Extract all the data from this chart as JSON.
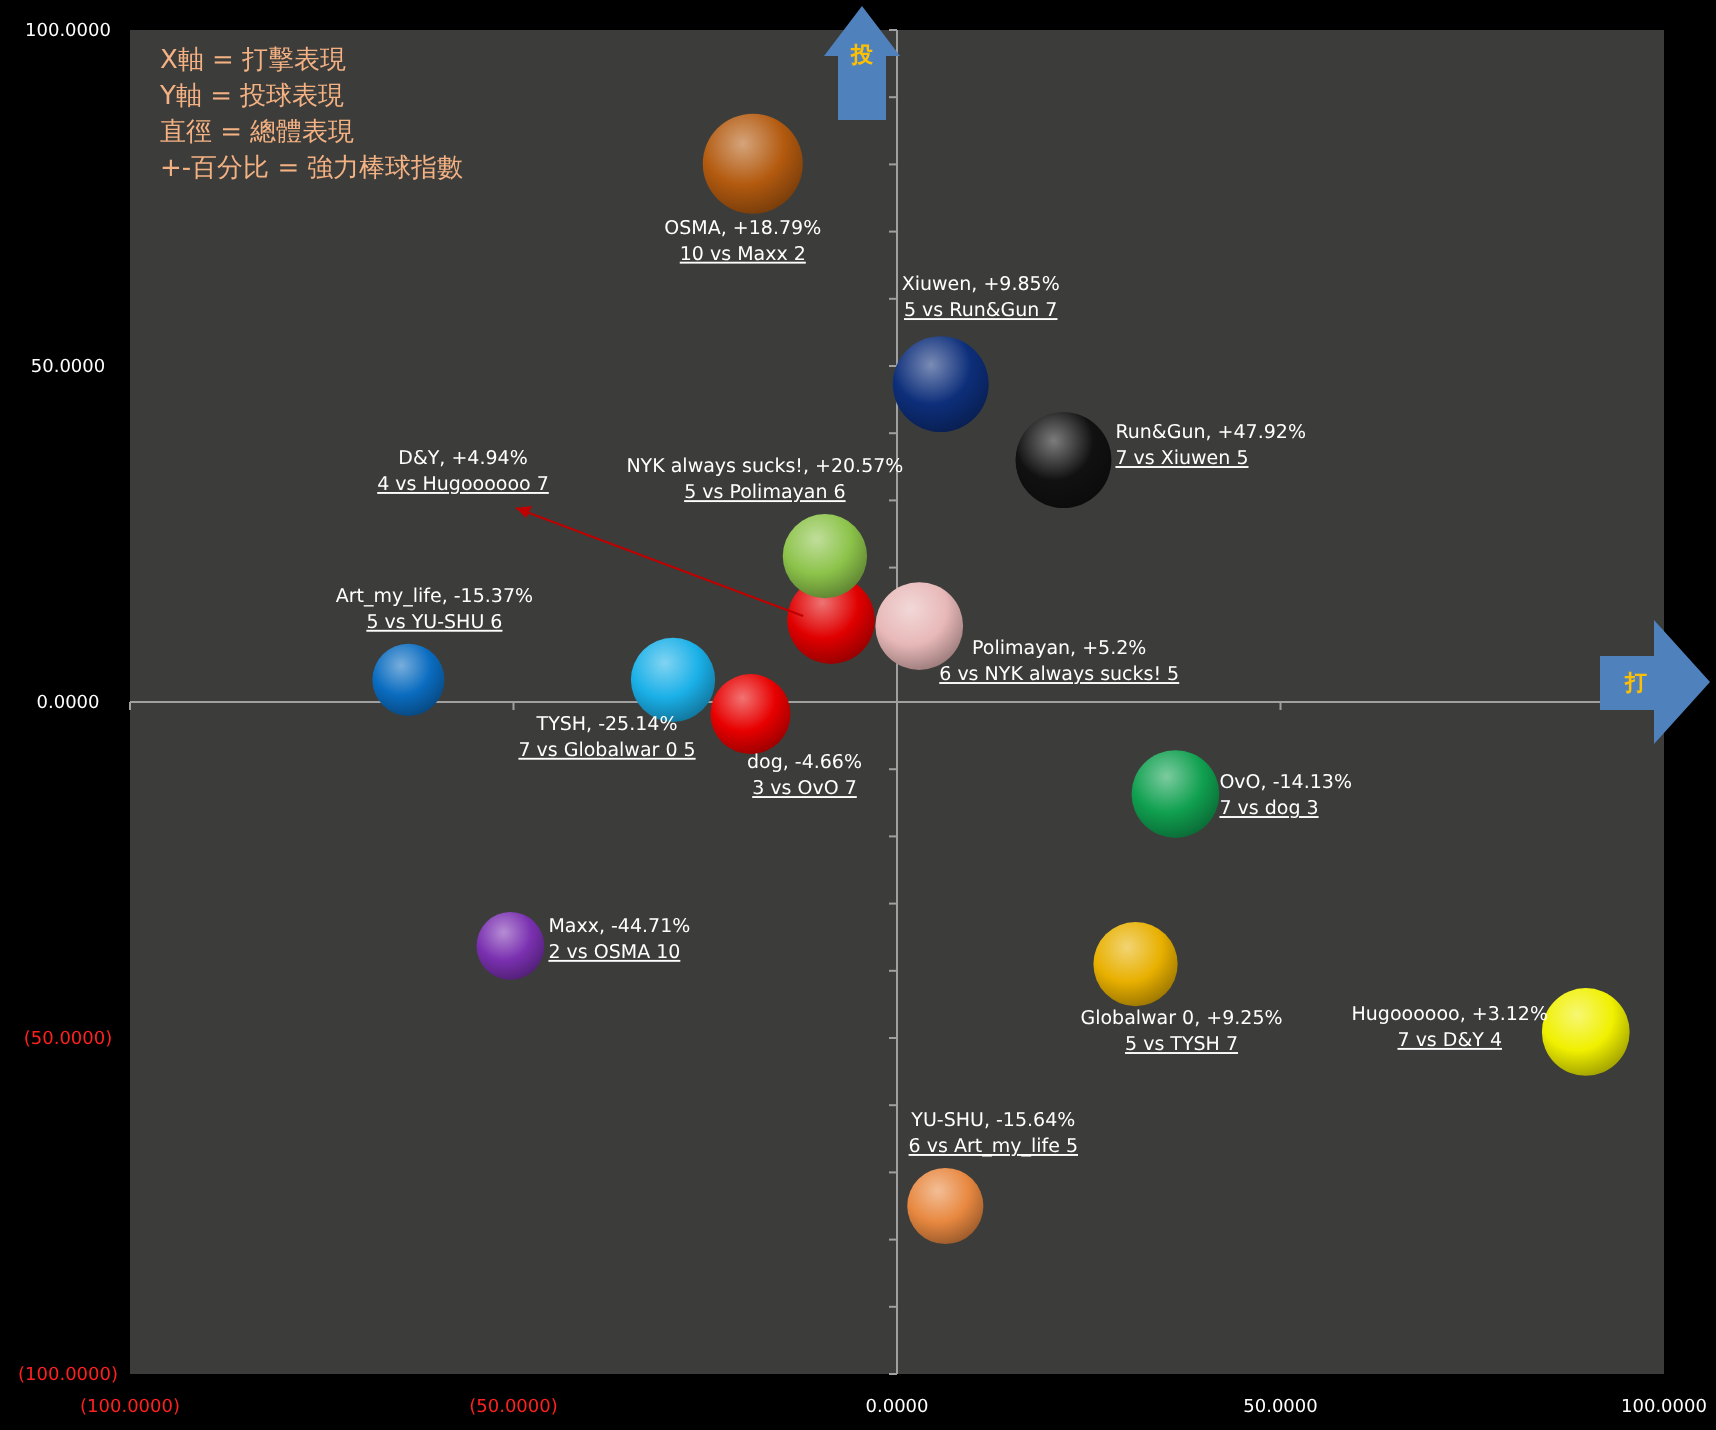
{
  "chart_data": {
    "type": "bubble",
    "xlim": [
      -100,
      100
    ],
    "ylim": [
      -100,
      100
    ],
    "xticks": [
      {
        "value": -100,
        "label": "(100.0000)"
      },
      {
        "value": -50,
        "label": "(50.0000)"
      },
      {
        "value": 0,
        "label": "0.0000"
      },
      {
        "value": 50,
        "label": "50.0000"
      },
      {
        "value": 100,
        "label": "100.0000"
      }
    ],
    "yticks": [
      {
        "value": -100,
        "label": "(100.0000)"
      },
      {
        "value": -50,
        "label": "(50.0000)"
      },
      {
        "value": 0,
        "label": "0.0000"
      },
      {
        "value": 50,
        "label": "50.0000"
      },
      {
        "value": 100,
        "label": "100.0000"
      }
    ],
    "series": [
      {
        "color": "#b35a0f",
        "x": [
          -18.8
        ],
        "values": [
          80.1
        ],
        "sizes": [
          1
        ]
      },
      {
        "color": "#0d2e7a",
        "x": [
          5.7
        ],
        "values": [
          47.3
        ],
        "sizes": [
          0.92
        ]
      },
      {
        "color": "#111111",
        "x": [
          21.7
        ],
        "values": [
          36.0
        ],
        "sizes": [
          0.92
        ]
      },
      {
        "color": "#e00000",
        "x": [
          -8.6
        ],
        "values": [
          12.2
        ],
        "sizes": [
          0.77
        ]
      },
      {
        "color": "#8cc34a",
        "x": [
          -9.4
        ],
        "values": [
          21.7
        ],
        "sizes": [
          0.71
        ]
      },
      {
        "color": "#e8b8b8",
        "x": [
          2.9
        ],
        "values": [
          11.3
        ],
        "sizes": [
          0.77
        ]
      },
      {
        "color": "#0a6cc0",
        "x": [
          -63.7
        ],
        "values": [
          3.3
        ],
        "sizes": [
          0.52
        ]
      },
      {
        "color": "#1ab0e8",
        "x": [
          -29.2
        ],
        "values": [
          3.3
        ],
        "sizes": [
          0.71
        ]
      },
      {
        "color": "#e80000",
        "x": [
          -19.1
        ],
        "values": [
          -1.8
        ],
        "sizes": [
          0.64
        ]
      },
      {
        "color": "#7a30b0",
        "x": [
          -50.4
        ],
        "values": [
          -36.3
        ],
        "sizes": [
          0.46
        ]
      },
      {
        "color": "#10a050",
        "x": [
          36.3
        ],
        "values": [
          -13.7
        ],
        "sizes": [
          0.77
        ]
      },
      {
        "color": "#e8b000",
        "x": [
          31.1
        ],
        "values": [
          -39.0
        ],
        "sizes": [
          0.71
        ]
      },
      {
        "color": "#f0f000",
        "x": [
          89.8
        ],
        "values": [
          -49.1
        ],
        "sizes": [
          0.77
        ]
      },
      {
        "color": "#e88840",
        "x": [
          6.3
        ],
        "values": [
          -75.0
        ],
        "sizes": [
          0.58
        ]
      }
    ],
    "annotations": [
      "X軸 = 打擊表現",
      "Y軸 = 投球表現",
      "直徑 = 總體表現",
      "+-百分比 = 強力棒球指數",
      "投",
      "打",
      "OSMA, +18.79%",
      "10 vs Maxx 2",
      "Xiuwen, +9.85%",
      "5 vs Run&Gun 7",
      "Run&Gun, +47.92%",
      "7 vs Xiuwen 5",
      "D&Y, +4.94%",
      "4 vs Hugoooooo 7",
      "NYK always sucks!, +20.57%",
      "5 vs Polimayan 6",
      "Polimayan, +5.2%",
      "6 vs NYK always sucks! 5",
      "Art_my_life, -15.37%",
      "5 vs YU-SHU 6",
      "TYSH, -25.14%",
      "7 vs Globalwar 0 5",
      "dog, -4.66%",
      "3 vs OvO 7",
      "Maxx, -44.71%",
      "2 vs OSMA 10",
      "OvO, -14.13%",
      "7 vs dog 3",
      "Globalwar 0, +9.25%",
      "5 vs TYSH 7",
      "Hugoooooo, +3.12%",
      "7 vs D&Y 4",
      "YU-SHU, -15.64%",
      "6 vs Art_my_life 5"
    ]
  }
}
